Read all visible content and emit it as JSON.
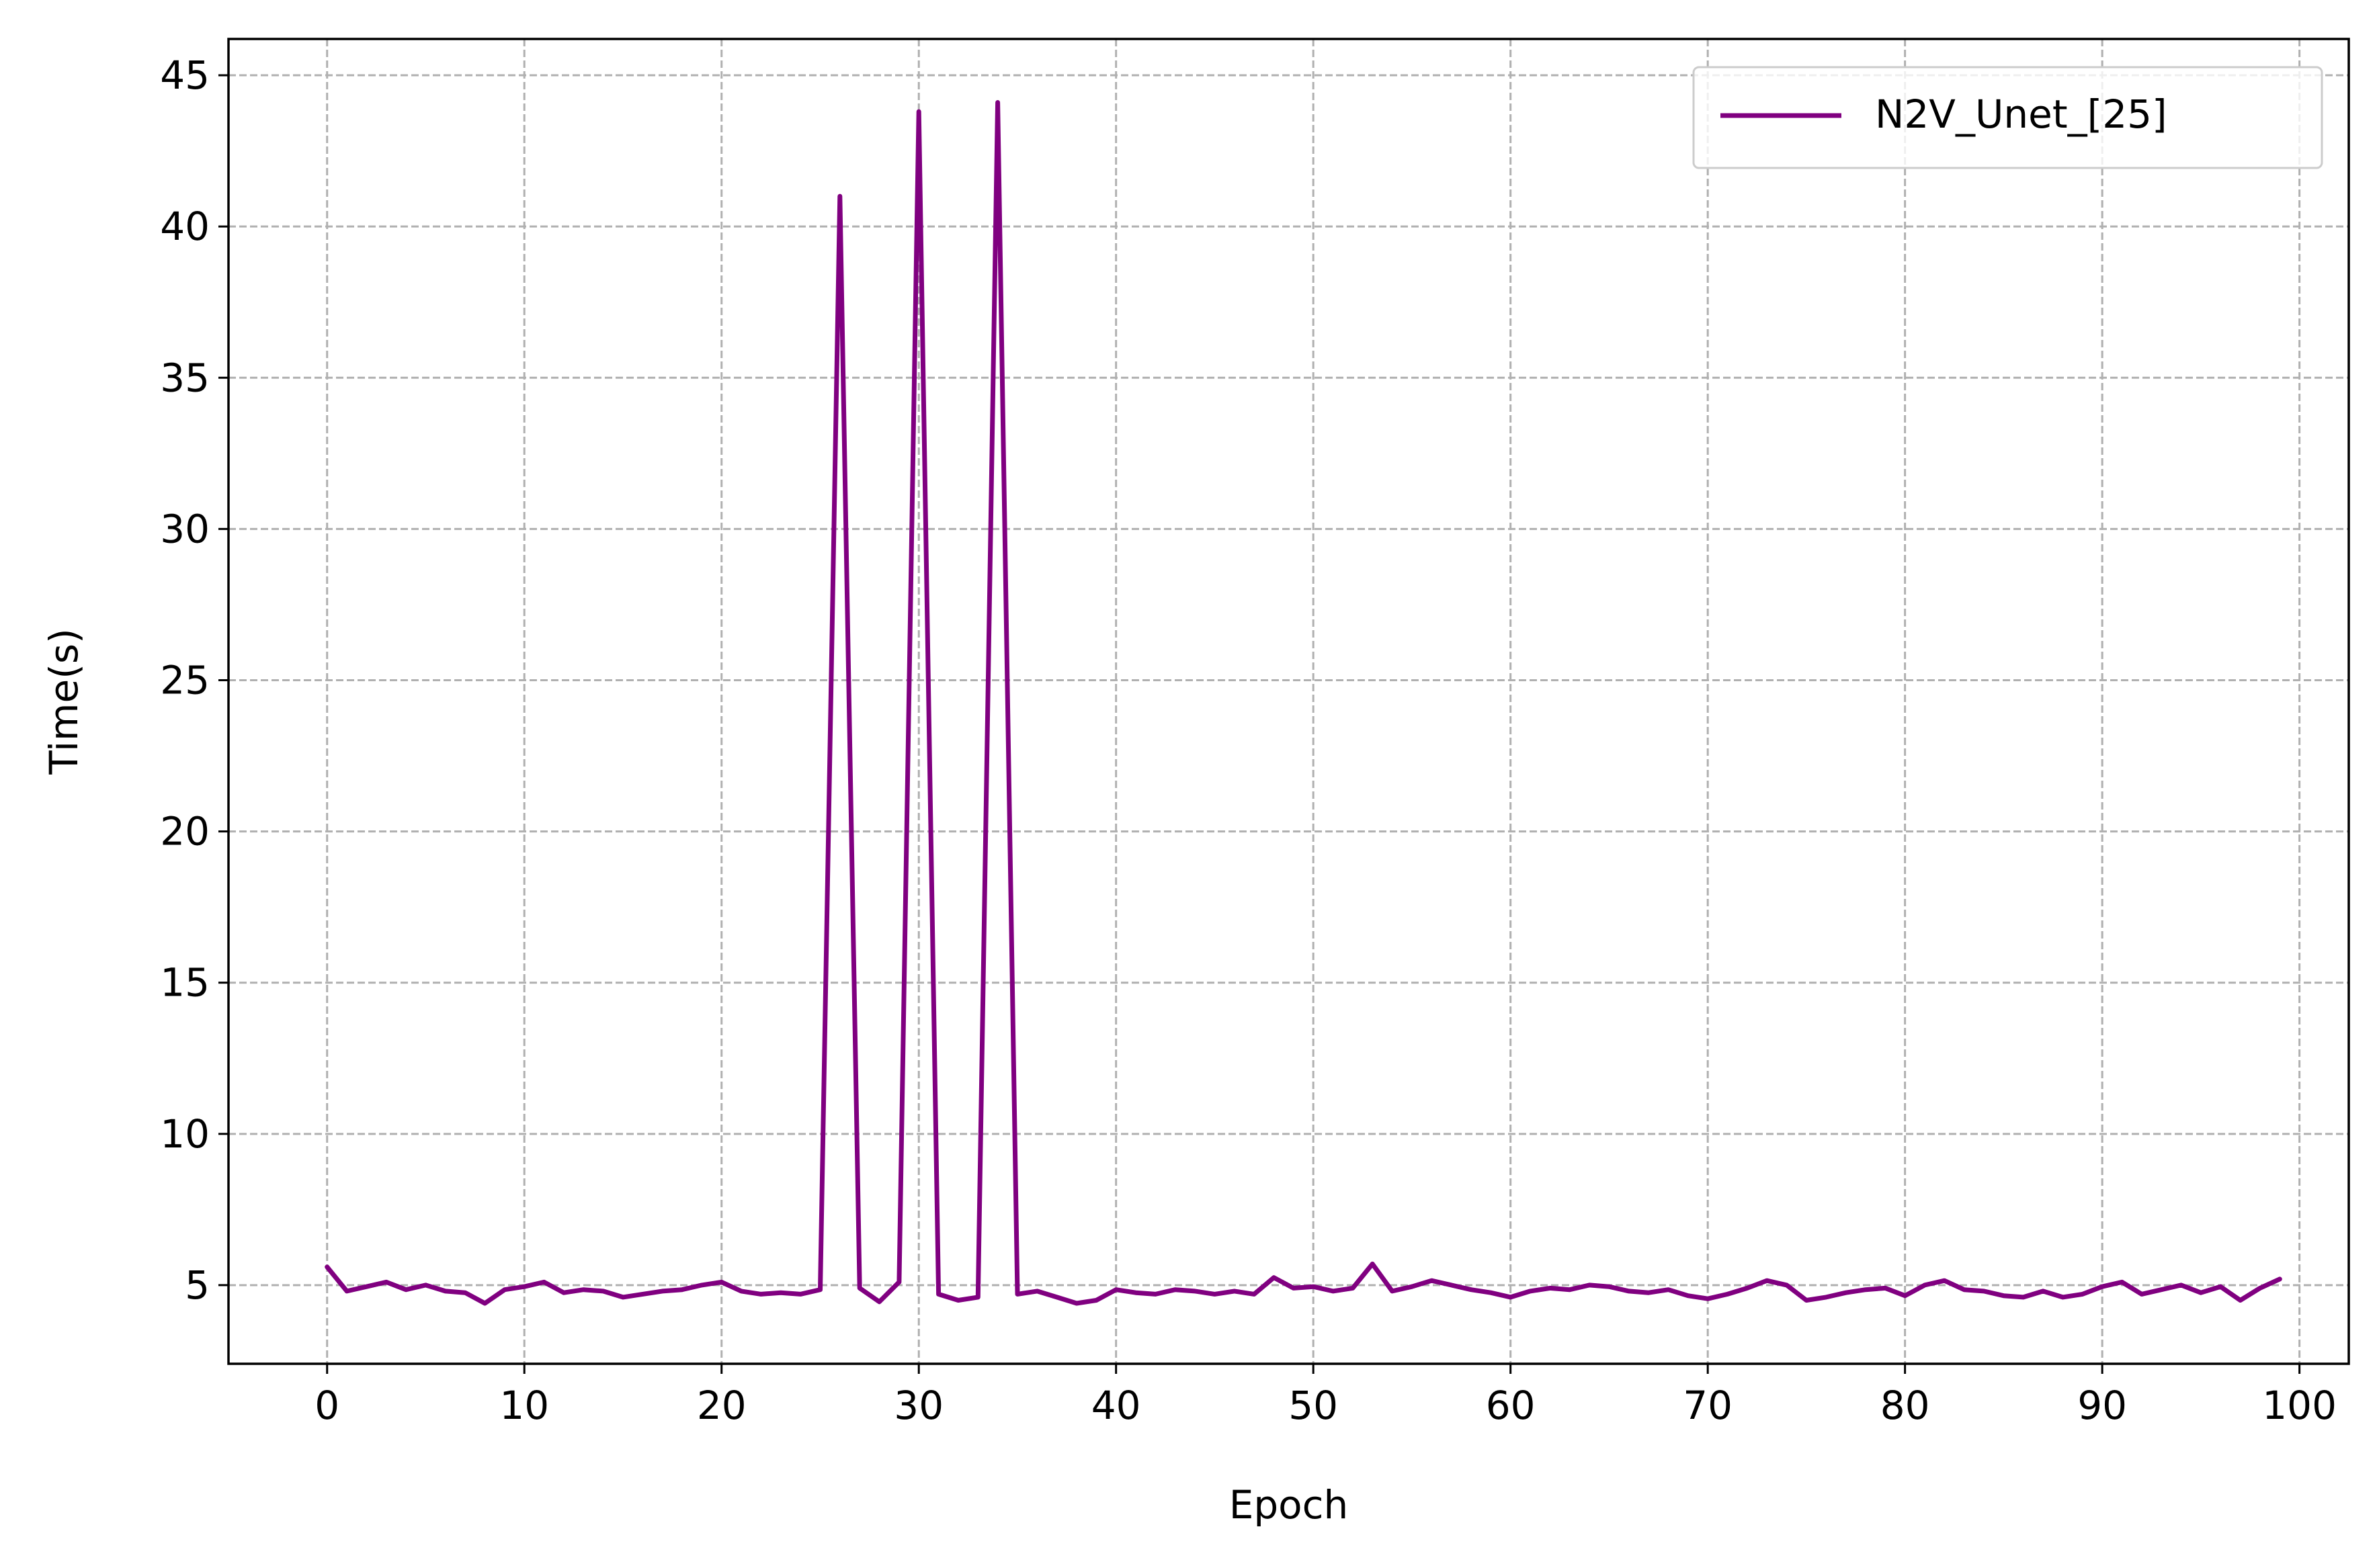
{
  "chart_data": {
    "type": "line",
    "xlabel": "Epoch",
    "ylabel": "Time(s)",
    "xlim": [
      -5,
      102.5
    ],
    "ylim": [
      2.4,
      46.2
    ],
    "xticks": [
      0,
      10,
      20,
      30,
      40,
      50,
      60,
      70,
      80,
      90,
      100
    ],
    "yticks": [
      5,
      10,
      15,
      20,
      25,
      30,
      35,
      40,
      45
    ],
    "grid": true,
    "legend_position": "upper right",
    "series": [
      {
        "name": "N2V_Unet_[25]",
        "color": "#800080",
        "x": [
          0,
          1,
          2,
          3,
          4,
          5,
          6,
          7,
          8,
          9,
          10,
          11,
          12,
          13,
          14,
          15,
          16,
          17,
          18,
          19,
          20,
          21,
          22,
          23,
          24,
          25,
          26,
          27,
          28,
          29,
          30,
          31,
          32,
          33,
          34,
          35,
          36,
          37,
          38,
          39,
          40,
          41,
          42,
          43,
          44,
          45,
          46,
          47,
          48,
          49,
          50,
          51,
          52,
          53,
          54,
          55,
          56,
          57,
          58,
          59,
          60,
          61,
          62,
          63,
          64,
          65,
          66,
          67,
          68,
          69,
          70,
          71,
          72,
          73,
          74,
          75,
          76,
          77,
          78,
          79,
          80,
          81,
          82,
          83,
          84,
          85,
          86,
          87,
          88,
          89,
          90,
          91,
          92,
          93,
          94,
          95,
          96,
          97,
          98,
          99
        ],
        "y": [
          5.6,
          4.8,
          4.95,
          5.1,
          4.85,
          5.0,
          4.8,
          4.75,
          4.4,
          4.85,
          4.95,
          5.1,
          4.75,
          4.85,
          4.8,
          4.6,
          4.7,
          4.8,
          4.85,
          5.0,
          5.1,
          4.8,
          4.7,
          4.75,
          4.7,
          4.85,
          41.0,
          4.9,
          4.45,
          5.1,
          43.8,
          4.7,
          4.5,
          4.6,
          44.1,
          4.7,
          4.8,
          4.6,
          4.4,
          4.5,
          4.85,
          4.75,
          4.7,
          4.85,
          4.8,
          4.7,
          4.8,
          4.7,
          5.25,
          4.9,
          4.95,
          4.8,
          4.9,
          5.7,
          4.8,
          4.95,
          5.15,
          5.0,
          4.85,
          4.75,
          4.6,
          4.8,
          4.9,
          4.85,
          5.0,
          4.95,
          4.8,
          4.75,
          4.85,
          4.65,
          4.55,
          4.7,
          4.9,
          5.15,
          5.0,
          4.5,
          4.6,
          4.75,
          4.85,
          4.9,
          4.65,
          5.0,
          5.15,
          4.85,
          4.8,
          4.65,
          4.6,
          4.8,
          4.6,
          4.7,
          4.95,
          5.1,
          4.7,
          4.85,
          5.0,
          4.75,
          4.95,
          4.5,
          4.9,
          5.2
        ]
      }
    ]
  }
}
